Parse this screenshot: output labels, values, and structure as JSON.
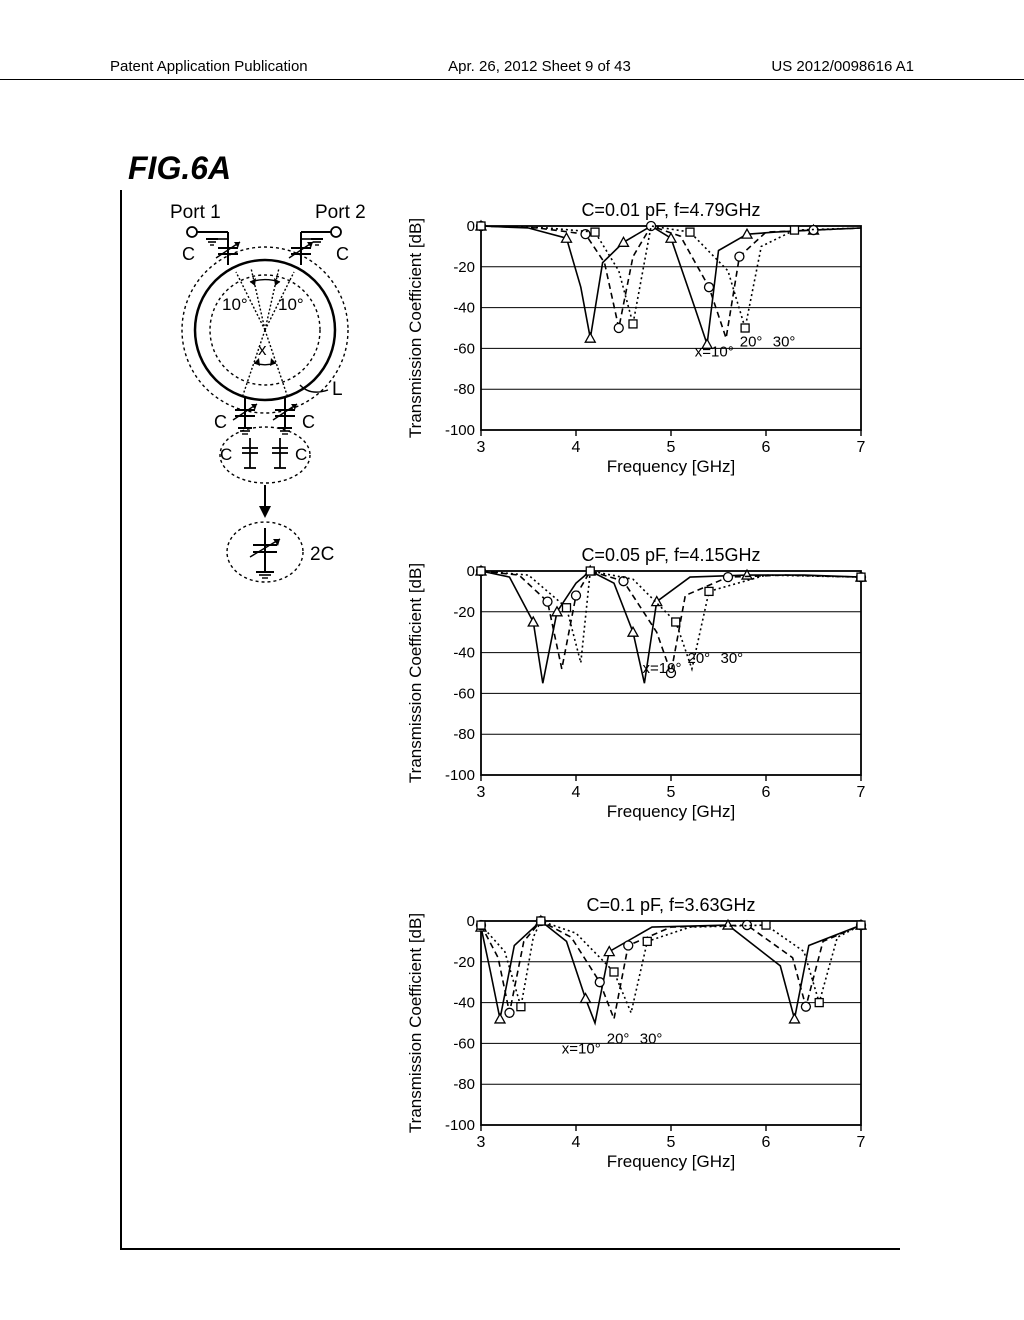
{
  "header": {
    "left": "Patent Application Publication",
    "center": "Apr. 26, 2012  Sheet 9 of 43",
    "right": "US 2012/0098616 A1"
  },
  "figure_label": "FIG.6A",
  "circuit": {
    "port1": "Port 1",
    "port2": "Port 2",
    "c_label": "C",
    "l_label": "L",
    "angle10_left": "10°",
    "angle10_right": "10°",
    "x_label": "x",
    "cap2c": "2C"
  },
  "charts": [
    {
      "title": "C=0.01 pF,  f=4.79GHz",
      "title_fontsize": 18,
      "xlabel": "Frequency [GHz]",
      "ylabel": "Transmission Coefficient [dB]",
      "label_fontsize": 17,
      "xlim": [
        3,
        7
      ],
      "ylim": [
        -100,
        0
      ],
      "xticks": [
        3,
        4,
        5,
        6,
        7
      ],
      "yticks": [
        0,
        -20,
        -40,
        -60,
        -80,
        -100
      ],
      "grid_color": "#000000",
      "background_color": "#ffffff",
      "line_width": 1.6,
      "marker_size": 5,
      "curves_label": {
        "x10": "x=10°",
        "x20": "20°",
        "x30": "30°",
        "pos_x": 5.25,
        "pos_y": -64
      },
      "series": [
        {
          "name": "x=10°",
          "dash": "solid",
          "marker": "triangle",
          "x": [
            3,
            3.5,
            3.9,
            4.05,
            4.15,
            4.28,
            4.5,
            4.79,
            5.0,
            5.25,
            5.38,
            5.5,
            5.8,
            6.1,
            6.5,
            7
          ],
          "y": [
            0,
            -1,
            -6,
            -30,
            -55,
            -18,
            -8,
            0,
            -6,
            -40,
            -58,
            -12,
            -4,
            -3,
            -2,
            -1
          ]
        },
        {
          "name": "x=20°",
          "dash": "dashed",
          "marker": "circle",
          "x": [
            3,
            3.6,
            4.1,
            4.3,
            4.45,
            4.6,
            4.79,
            5.1,
            5.4,
            5.58,
            5.72,
            6.0,
            6.5,
            7
          ],
          "y": [
            0,
            -1,
            -4,
            -18,
            -50,
            -15,
            0,
            -5,
            -30,
            -55,
            -15,
            -3,
            -2,
            -1
          ]
        },
        {
          "name": "x=30°",
          "dash": "dotted",
          "marker": "square",
          "x": [
            3,
            3.7,
            4.2,
            4.45,
            4.6,
            4.79,
            5.2,
            5.6,
            5.78,
            5.95,
            6.3,
            7
          ],
          "y": [
            0,
            -1,
            -3,
            -22,
            -48,
            0,
            -3,
            -22,
            -50,
            -10,
            -2,
            -1
          ]
        }
      ]
    },
    {
      "title": "C=0.05 pF,  f=4.15GHz",
      "title_fontsize": 18,
      "xlabel": "Frequency [GHz]",
      "ylabel": "Transmission Coefficient [dB]",
      "label_fontsize": 17,
      "xlim": [
        3,
        7
      ],
      "ylim": [
        -100,
        0
      ],
      "xticks": [
        3,
        4,
        5,
        6,
        7
      ],
      "yticks": [
        0,
        -20,
        -40,
        -60,
        -80,
        -100
      ],
      "grid_color": "#000000",
      "background_color": "#ffffff",
      "line_width": 1.6,
      "marker_size": 5,
      "curves_label": {
        "x10": "x=10°",
        "x20": "20°",
        "x30": "30°",
        "pos_x": 4.7,
        "pos_y": -50
      },
      "series": [
        {
          "name": "x=10°",
          "dash": "solid",
          "marker": "triangle",
          "x": [
            3,
            3.3,
            3.55,
            3.65,
            3.8,
            4.0,
            4.15,
            4.4,
            4.6,
            4.72,
            4.85,
            5.2,
            5.8,
            6.4,
            7
          ],
          "y": [
            0,
            -3,
            -25,
            -55,
            -20,
            -6,
            0,
            -6,
            -30,
            -55,
            -15,
            -3,
            -2,
            -2,
            -3
          ]
        },
        {
          "name": "x=20°",
          "dash": "dashed",
          "marker": "circle",
          "x": [
            3,
            3.4,
            3.7,
            3.85,
            4.0,
            4.15,
            4.5,
            4.85,
            5.0,
            5.15,
            5.6,
            6.2,
            7
          ],
          "y": [
            0,
            -2,
            -15,
            -48,
            -12,
            0,
            -5,
            -30,
            -50,
            -12,
            -3,
            -2,
            -3
          ]
        },
        {
          "name": "x=30°",
          "dash": "dotted",
          "marker": "square",
          "x": [
            3,
            3.5,
            3.9,
            4.05,
            4.15,
            4.6,
            5.05,
            5.22,
            5.4,
            6.0,
            7
          ],
          "y": [
            0,
            -2,
            -18,
            -45,
            0,
            -4,
            -25,
            -48,
            -10,
            -2,
            -3
          ]
        }
      ]
    },
    {
      "title": "C=0.1 pF,  f=3.63GHz",
      "title_fontsize": 18,
      "xlabel": "Frequency [GHz]",
      "ylabel": "Transmission Coefficient [dB]",
      "label_fontsize": 17,
      "xlim": [
        3,
        7
      ],
      "ylim": [
        -100,
        0
      ],
      "xticks": [
        3,
        4,
        5,
        6,
        7
      ],
      "yticks": [
        0,
        -20,
        -40,
        -60,
        -80,
        -100
      ],
      "grid_color": "#000000",
      "background_color": "#ffffff",
      "line_width": 1.6,
      "marker_size": 5,
      "curves_label": {
        "x10": "x=10°",
        "x20": "20°",
        "x30": "30°",
        "pos_x": 3.85,
        "pos_y": -65
      },
      "series": [
        {
          "name": "x=10°",
          "dash": "solid",
          "marker": "triangle",
          "x": [
            3,
            3.1,
            3.2,
            3.35,
            3.63,
            3.9,
            4.1,
            4.2,
            4.35,
            4.8,
            5.6,
            6.15,
            6.3,
            6.45,
            7
          ],
          "y": [
            -3,
            -25,
            -48,
            -12,
            0,
            -10,
            -38,
            -50,
            -15,
            -3,
            -2,
            -22,
            -48,
            -12,
            -2
          ]
        },
        {
          "name": "x=20°",
          "dash": "dashed",
          "marker": "circle",
          "x": [
            3,
            3.18,
            3.3,
            3.45,
            3.63,
            3.95,
            4.25,
            4.4,
            4.55,
            5.0,
            5.8,
            6.28,
            6.42,
            6.6,
            7
          ],
          "y": [
            -2,
            -18,
            -45,
            -10,
            0,
            -8,
            -30,
            -48,
            -12,
            -3,
            -2,
            -18,
            -42,
            -10,
            -2
          ]
        },
        {
          "name": "x=30°",
          "dash": "dotted",
          "marker": "square",
          "x": [
            3,
            3.25,
            3.42,
            3.55,
            3.63,
            4.0,
            4.4,
            4.58,
            4.75,
            5.2,
            6.0,
            6.4,
            6.56,
            6.75,
            7
          ],
          "y": [
            -2,
            -15,
            -42,
            -8,
            0,
            -6,
            -25,
            -45,
            -10,
            -3,
            -2,
            -15,
            -40,
            -8,
            -2
          ]
        }
      ]
    }
  ],
  "chart_positions": [
    200,
    545,
    895
  ]
}
